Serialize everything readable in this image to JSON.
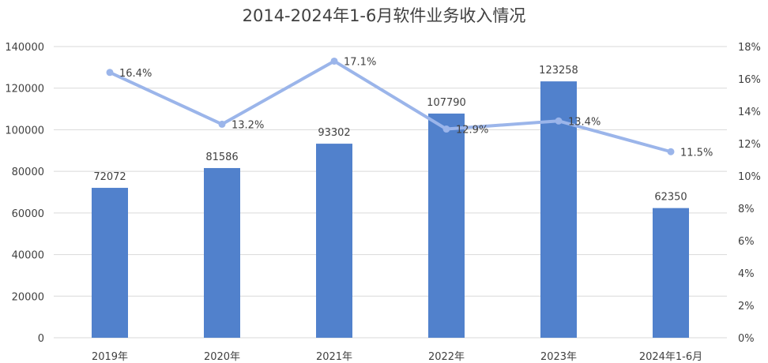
{
  "chart_data": {
    "type": "bar",
    "title": "2014-2024年1-6月软件业务收入情况",
    "categories": [
      "2019年",
      "2020年",
      "2021年",
      "2022年",
      "2023年",
      "2024年1-6月"
    ],
    "series": [
      {
        "type": "bar",
        "axis": "left",
        "values": [
          72072,
          81586,
          93302,
          107790,
          123258,
          62350
        ],
        "labels": [
          "72072",
          "81586",
          "93302",
          "107790",
          "123258",
          "62350"
        ]
      },
      {
        "type": "line",
        "axis": "right",
        "values": [
          16.4,
          13.2,
          17.1,
          12.9,
          13.4,
          11.5
        ],
        "labels": [
          "16.4%",
          "13.2%",
          "17.1%",
          "12.9%",
          "13.4%",
          "11.5%"
        ]
      }
    ],
    "y_left": {
      "min": 0,
      "max": 140000,
      "ticks": [
        "0",
        "20000",
        "40000",
        "60000",
        "80000",
        "100000",
        "120000",
        "140000"
      ]
    },
    "y_right": {
      "min": 0,
      "max": 18,
      "ticks": [
        "0%",
        "2%",
        "4%",
        "6%",
        "8%",
        "10%",
        "12%",
        "14%",
        "16%",
        "18%"
      ]
    },
    "grid": true,
    "legend": "none",
    "colors": {
      "bar": "#5181cc",
      "line": "#9bb5ea",
      "grid": "#d9d9d9",
      "text": "#404040"
    }
  }
}
